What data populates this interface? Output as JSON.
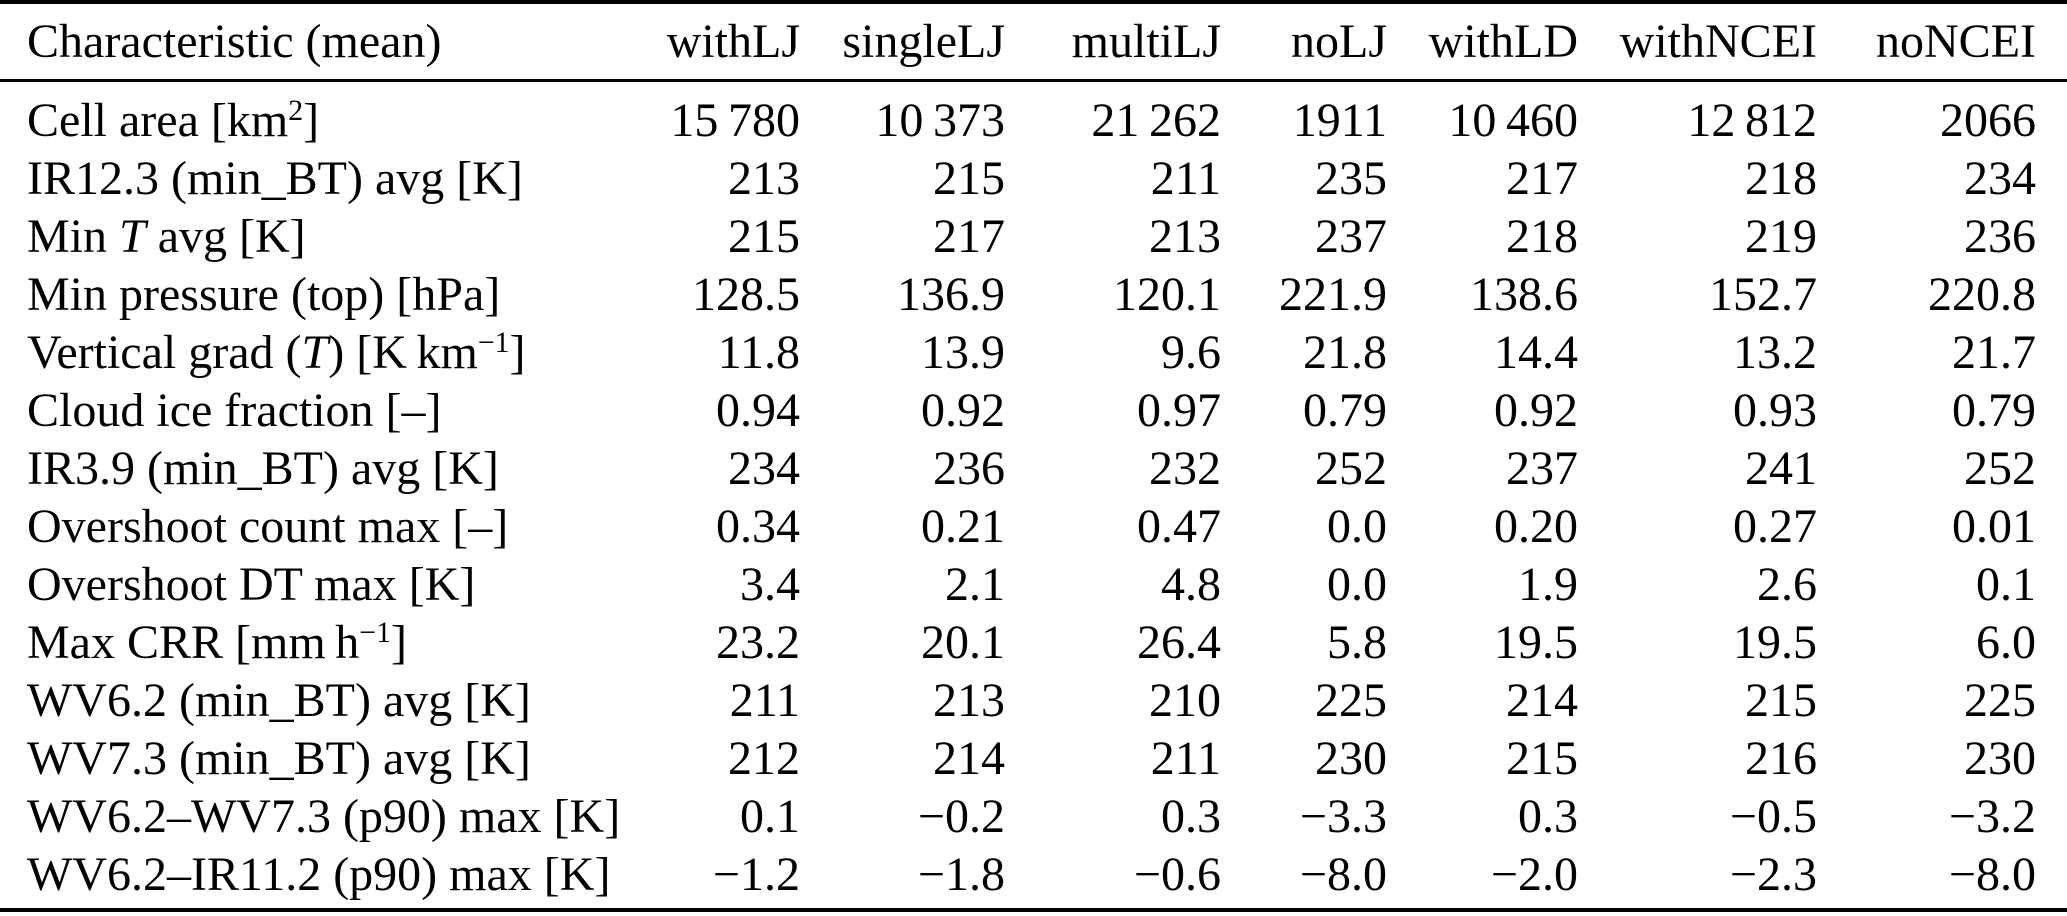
{
  "table": {
    "columns": [
      "Characteristic (mean)",
      "withLJ",
      "singleLJ",
      "multiLJ",
      "noLJ",
      "withLD",
      "withNCEI",
      "noNCEI"
    ],
    "rows": [
      {
        "label": "Cell area [km^{2}]",
        "values": [
          "15 780",
          "10 373",
          "21 262",
          "1911",
          "10 460",
          "12 812",
          "2066"
        ]
      },
      {
        "label": "IR12.3 (min_BT) avg [K]",
        "values": [
          "213",
          "215",
          "211",
          "235",
          "217",
          "218",
          "234"
        ]
      },
      {
        "label": "Min *T* avg [K]",
        "values": [
          "215",
          "217",
          "213",
          "237",
          "218",
          "219",
          "236"
        ]
      },
      {
        "label": "Min pressure (top) [hPa]",
        "values": [
          "128.5",
          "136.9",
          "120.1",
          "221.9",
          "138.6",
          "152.7",
          "220.8"
        ]
      },
      {
        "label": "Vertical grad (*T*) [K km^{−1}]",
        "values": [
          "11.8",
          "13.9",
          "9.6",
          "21.8",
          "14.4",
          "13.2",
          "21.7"
        ]
      },
      {
        "label": "Cloud ice fraction [–]",
        "values": [
          "0.94",
          "0.92",
          "0.97",
          "0.79",
          "0.92",
          "0.93",
          "0.79"
        ]
      },
      {
        "label": "IR3.9 (min_BT) avg [K]",
        "values": [
          "234",
          "236",
          "232",
          "252",
          "237",
          "241",
          "252"
        ]
      },
      {
        "label": "Overshoot count max [–]",
        "values": [
          "0.34",
          "0.21",
          "0.47",
          "0.0",
          "0.20",
          "0.27",
          "0.01"
        ]
      },
      {
        "label": "Overshoot DT max [K]",
        "values": [
          "3.4",
          "2.1",
          "4.8",
          "0.0",
          "1.9",
          "2.6",
          "0.1"
        ]
      },
      {
        "label": "Max CRR [mm h^{−1}]",
        "values": [
          "23.2",
          "20.1",
          "26.4",
          "5.8",
          "19.5",
          "19.5",
          "6.0"
        ]
      },
      {
        "label": "WV6.2 (min_BT) avg [K]",
        "values": [
          "211",
          "213",
          "210",
          "225",
          "214",
          "215",
          "225"
        ]
      },
      {
        "label": "WV7.3 (min_BT) avg [K]",
        "values": [
          "212",
          "214",
          "211",
          "230",
          "215",
          "216",
          "230"
        ]
      },
      {
        "label": "WV6.2–WV7.3 (p90) max [K]",
        "values": [
          "0.1",
          "−0.2",
          "0.3",
          "−3.3",
          "0.3",
          "−0.5",
          "−3.2"
        ]
      },
      {
        "label": "WV6.2–IR11.2 (p90) max [K]",
        "values": [
          "−1.2",
          "−1.8",
          "−0.6",
          "−8.0",
          "−2.0",
          "−2.3",
          "−8.0"
        ]
      }
    ]
  }
}
